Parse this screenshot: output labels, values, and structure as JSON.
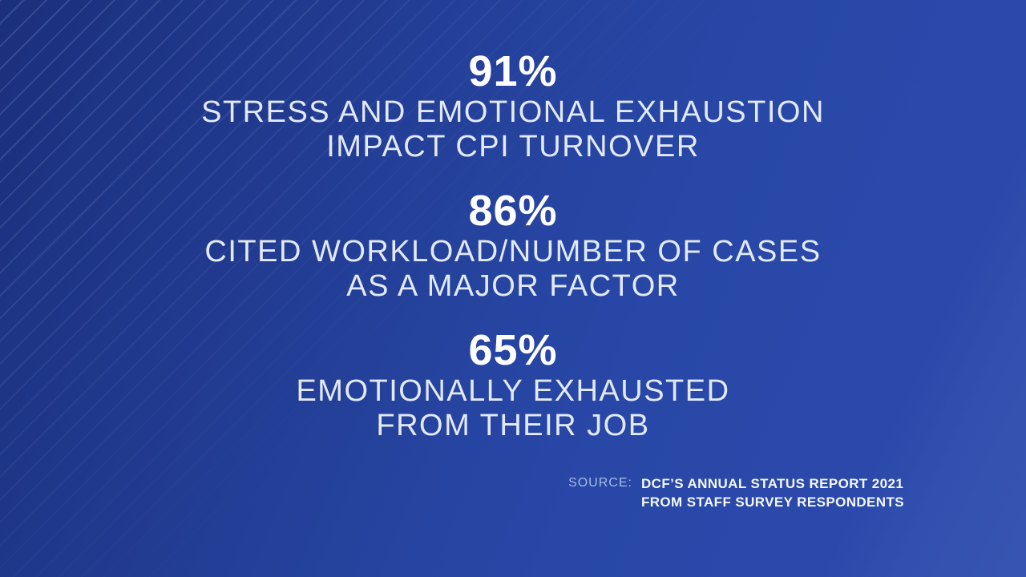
{
  "chart_data": {
    "type": "table",
    "title": "DCF staff survey results on CPI turnover",
    "categories": [
      "Stress and emotional exhaustion impact CPI turnover",
      "Cited workload/number of cases as a major factor",
      "Emotionally exhausted from their job"
    ],
    "values": [
      91,
      86,
      65
    ],
    "unit": "percent",
    "source": "DCF'S ANNUAL STATUS REPORT 2021 FROM STAFF SURVEY RESPONDENTS"
  },
  "stats": [
    {
      "value": "91%",
      "line1": "STRESS AND EMOTIONAL EXHAUSTION",
      "line2": "IMPACT CPI TURNOVER"
    },
    {
      "value": "86%",
      "line1": "CITED WORKLOAD/NUMBER OF CASES",
      "line2": "AS A MAJOR FACTOR"
    },
    {
      "value": "65%",
      "line1": "EMOTIONALLY EXHAUSTED",
      "line2": "FROM THEIR JOB"
    }
  ],
  "source": {
    "label": "SOURCE:",
    "line1": "DCF’S ANNUAL STATUS REPORT 2021",
    "line2": "FROM STAFF SURVEY RESPONDENTS"
  },
  "colors": {
    "background_dark": "#1b2f7c",
    "background_light": "#2b4aad",
    "stripe": "#8ca5e1",
    "stat_text": "#e2e9f8",
    "stat_value": "#ffffff",
    "source_label": "#a9bce4",
    "source_text": "#f4f7fd"
  }
}
